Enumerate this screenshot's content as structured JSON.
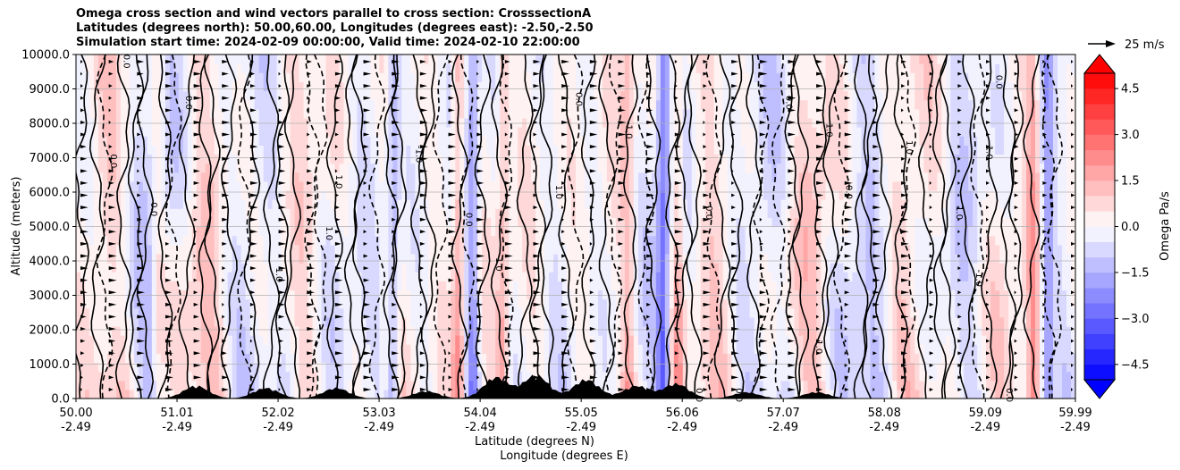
{
  "figure": {
    "title_lines": [
      "Omega cross section and wind vectors parallel to cross section: CrosssectionA",
      "Latitudes (degrees north): 50.00,60.00, Longitudes (degrees east): -2.50,-2.50",
      "Simulation start time: 2024-02-09 00:00:00, Valid time: 2024-02-10 22:00:00"
    ]
  },
  "chart_data": {
    "type": "contourf",
    "title": "Omega cross section and wind vectors parallel to cross section: CrosssectionA",
    "xlabel": "Latitude (degrees N)",
    "xlabel2": "Longitude (degrees E)",
    "ylabel": "Altitude (meters)",
    "x_ticks": [
      {
        "lat": "50.00",
        "lon": "-2.49"
      },
      {
        "lat": "51.01",
        "lon": "-2.49"
      },
      {
        "lat": "52.02",
        "lon": "-2.49"
      },
      {
        "lat": "53.03",
        "lon": "-2.49"
      },
      {
        "lat": "54.04",
        "lon": "-2.49"
      },
      {
        "lat": "55.05",
        "lon": "-2.49"
      },
      {
        "lat": "56.06",
        "lon": "-2.49"
      },
      {
        "lat": "57.07",
        "lon": "-2.49"
      },
      {
        "lat": "58.08",
        "lon": "-2.49"
      },
      {
        "lat": "59.09",
        "lon": "-2.49"
      },
      {
        "lat": "59.99",
        "lon": "-2.49"
      }
    ],
    "y_ticks": [
      "0.0",
      "1000.0",
      "2000.0",
      "3000.0",
      "4000.0",
      "5000.0",
      "6000.0",
      "7000.0",
      "8000.0",
      "9000.0",
      "10000.0"
    ],
    "ylim": [
      0,
      10000
    ],
    "xlim": [
      50.0,
      59.99
    ],
    "grid": "horizontal",
    "contour_labels": [
      {
        "lat": 50.48,
        "alt": 9800,
        "text": "0.0"
      },
      {
        "lat": 50.35,
        "alt": 6900,
        "text": "0.0"
      },
      {
        "lat": 50.75,
        "alt": 5500,
        "text": "0.0"
      },
      {
        "lat": 51.1,
        "alt": 8600,
        "text": "0.0"
      },
      {
        "lat": 52.6,
        "alt": 6300,
        "text": "1.0"
      },
      {
        "lat": 52.5,
        "alt": 4800,
        "text": "1.0"
      },
      {
        "lat": 52.0,
        "alt": 3600,
        "text": "1.0"
      },
      {
        "lat": 53.4,
        "alt": 7100,
        "text": "-1.0"
      },
      {
        "lat": 53.9,
        "alt": 5200,
        "text": "0.0"
      },
      {
        "lat": 54.2,
        "alt": 3900,
        "text": "1.0"
      },
      {
        "lat": 54.8,
        "alt": 6000,
        "text": "1.0"
      },
      {
        "lat": 55.0,
        "alt": 8700,
        "text": "0.0"
      },
      {
        "lat": 55.5,
        "alt": 7800,
        "text": "-1.0"
      },
      {
        "lat": 56.3,
        "alt": 5400,
        "text": "0.0"
      },
      {
        "lat": 57.1,
        "alt": 8600,
        "text": "0.0"
      },
      {
        "lat": 57.5,
        "alt": 7800,
        "text": "1.0"
      },
      {
        "lat": 57.7,
        "alt": 6000,
        "text": "0.0"
      },
      {
        "lat": 58.3,
        "alt": 7300,
        "text": "1.0"
      },
      {
        "lat": 59.2,
        "alt": 9200,
        "text": "0.0"
      },
      {
        "lat": 59.1,
        "alt": 7200,
        "text": "-1.0"
      },
      {
        "lat": 58.8,
        "alt": 5400,
        "text": "1.0"
      },
      {
        "lat": 59.0,
        "alt": 3500,
        "text": "-1.0"
      },
      {
        "lat": 57.4,
        "alt": 1500,
        "text": "1.0"
      },
      {
        "lat": 56.2,
        "alt": 100,
        "text": "0.0"
      },
      {
        "lat": 56.6,
        "alt": 100,
        "text": "0.0"
      },
      {
        "lat": 59.3,
        "alt": 100,
        "text": "0.0"
      }
    ],
    "colorbar": {
      "label": "Omega Pa/s",
      "range": [
        -5.0,
        5.0
      ],
      "step": 0.5,
      "ticks": [
        "4.5",
        "3.0",
        "1.5",
        "0.0",
        "−1.5",
        "−3.0",
        "−4.5"
      ],
      "tick_values": [
        4.5,
        3.0,
        1.5,
        0.0,
        -1.5,
        -3.0,
        -4.5
      ],
      "extend": "both",
      "colormap": "bwr"
    },
    "quiver_key": {
      "label": "25 m/s",
      "speed": 25
    }
  }
}
